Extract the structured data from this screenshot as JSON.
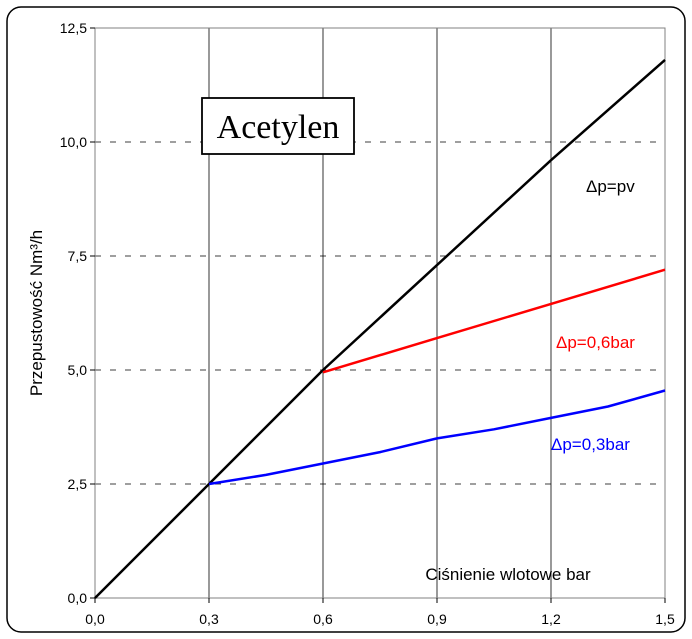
{
  "chart_data": {
    "type": "line",
    "title": "Acetylen",
    "xlabel": "Ciśnienie wlotowe bar",
    "ylabel": "Przepustowość Nm³/h",
    "xlim": [
      0,
      1.5
    ],
    "ylim": [
      0,
      12.5
    ],
    "x_ticks": [
      "0,0",
      "0,3",
      "0,6",
      "0,9",
      "1,2",
      "1,5"
    ],
    "y_ticks": [
      "0,0",
      "2,5",
      "5,0",
      "7,5",
      "10,0",
      "12,5"
    ],
    "grid": {
      "vertical": "solid",
      "horizontal": "dashed"
    },
    "series": [
      {
        "name": "Δp=pv",
        "color": "#000000",
        "x": [
          0,
          0.3,
          0.6,
          0.9,
          1.2,
          1.5
        ],
        "y": [
          0,
          2.5,
          5.0,
          7.3,
          9.6,
          11.8
        ]
      },
      {
        "name": "Δp=0,6bar",
        "color": "#ff0000",
        "x": [
          0.6,
          0.9,
          1.2,
          1.5
        ],
        "y": [
          4.95,
          5.7,
          6.45,
          7.2
        ]
      },
      {
        "name": "Δp=0,3bar",
        "color": "#0000ff",
        "x": [
          0.3,
          0.45,
          0.6,
          0.75,
          0.9,
          1.05,
          1.2,
          1.35,
          1.5
        ],
        "y": [
          2.5,
          2.7,
          2.95,
          3.2,
          3.5,
          3.7,
          3.95,
          4.2,
          4.55
        ]
      }
    ]
  }
}
